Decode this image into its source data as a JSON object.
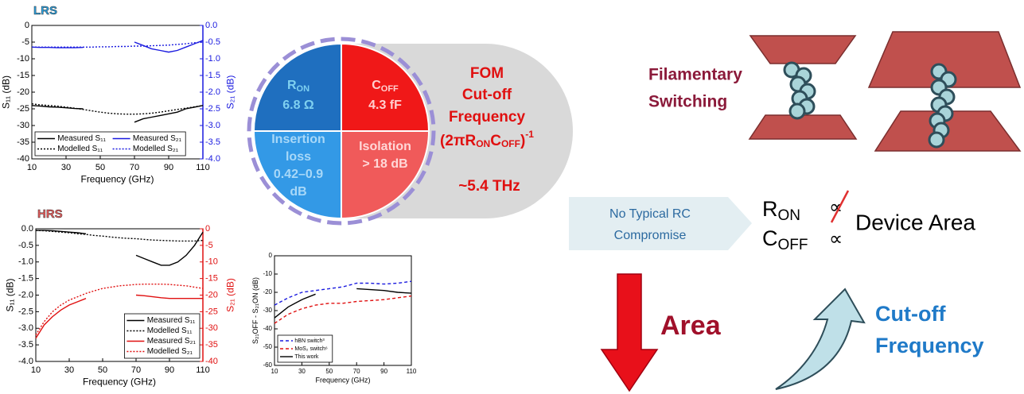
{
  "chart_data": [
    {
      "type": "line",
      "title": "LRS",
      "title_color": "#29a0e0",
      "x_label": "Frequency (GHz)",
      "y_label": "S₁₁ (dB)",
      "y2_label": "S₂₁ (dB)",
      "y2_color": "#1a1adf",
      "x": [
        10,
        15,
        20,
        25,
        30,
        35,
        40,
        45,
        50,
        55,
        60,
        65,
        70,
        75,
        80,
        85,
        90,
        95,
        100,
        105,
        110
      ],
      "xlim": [
        10,
        110
      ],
      "xticks": [
        10,
        30,
        50,
        70,
        90,
        110
      ],
      "ylim": [
        -40,
        0
      ],
      "yticks": [
        0,
        -5,
        -10,
        -15,
        -20,
        -25,
        -30,
        -35,
        -40
      ],
      "y2lim": [
        -4,
        0
      ],
      "y2ticks": [
        {
          "value": 0,
          "label": "0.0"
        },
        -0.5,
        {
          "value": -1,
          "label": "-1.0"
        },
        -1.5,
        {
          "value": -2,
          "label": "-2.0"
        },
        -2.5,
        {
          "value": -3,
          "label": "-3.0"
        },
        -3.5,
        {
          "value": -4,
          "label": "-4.0"
        }
      ],
      "legend": "lower left",
      "legend_columns": 2,
      "series": [
        {
          "name": "Measured S₁₁",
          "color": "#000000",
          "linestyle": "solid",
          "values": [
            -24,
            -24.2,
            -24.4,
            -24.5,
            -24.7,
            -24.9,
            -25,
            null,
            null,
            null,
            null,
            null,
            -29,
            -28,
            -27.5,
            -27,
            -26.5,
            -26,
            -25,
            -24.5,
            -24
          ]
        },
        {
          "name": "Measured S₂₁",
          "color": "#1a1adf",
          "linestyle": "solid",
          "axis": "y2",
          "values": [
            -0.65,
            -0.66,
            -0.66,
            -0.67,
            -0.67,
            -0.67,
            -0.66,
            null,
            null,
            null,
            null,
            null,
            -0.5,
            -0.6,
            -0.7,
            -0.75,
            -0.8,
            -0.75,
            -0.65,
            -0.55,
            -0.45
          ]
        },
        {
          "name": "Modelled S₁₁",
          "color": "#000000",
          "linestyle": "dotted",
          "values": [
            -23.5,
            -23.8,
            -24,
            -24.2,
            -24.5,
            -24.8,
            -25.2,
            -25.6,
            -26,
            -26.3,
            -26.5,
            -26.6,
            -26.6,
            -26.5,
            -26.3,
            -26,
            -25.6,
            -25.2,
            -24.8,
            -24.4,
            -24
          ]
        },
        {
          "name": "Modelled S₂₁",
          "color": "#1a1adf",
          "linestyle": "dotted",
          "axis": "y2",
          "values": [
            -0.65,
            -0.65,
            -0.65,
            -0.65,
            -0.65,
            -0.65,
            -0.65,
            -0.65,
            -0.64,
            -0.64,
            -0.63,
            -0.63,
            -0.62,
            -0.62,
            -0.61,
            -0.6,
            -0.59,
            -0.57,
            -0.55,
            -0.52,
            -0.5
          ]
        }
      ]
    },
    {
      "type": "line",
      "title": "HRS",
      "title_color": "#e85a5a",
      "x_label": "Frequency (GHz)",
      "y_label": "S₁₁ (dB)",
      "y2_label": "S₂₁ (dB)",
      "y2_color": "#e01010",
      "x": [
        10,
        15,
        20,
        25,
        30,
        35,
        40,
        45,
        50,
        55,
        60,
        65,
        70,
        75,
        80,
        85,
        90,
        95,
        100,
        105,
        110
      ],
      "xlim": [
        10,
        110
      ],
      "xticks": [
        10,
        30,
        50,
        70,
        90,
        110
      ],
      "ylim": [
        -4,
        0
      ],
      "yticks": [
        {
          "value": 0,
          "label": "0.0"
        },
        -0.5,
        {
          "value": -1,
          "label": "-1.0"
        },
        -1.5,
        {
          "value": -2,
          "label": "-2.0"
        },
        -2.5,
        {
          "value": -3,
          "label": "-3.0"
        },
        -3.5,
        {
          "value": -4,
          "label": "-4.0"
        }
      ],
      "y2lim": [
        -40,
        0
      ],
      "y2ticks": [
        0,
        -5,
        -10,
        -15,
        -20,
        -25,
        -30,
        -35,
        -40
      ],
      "legend": "lower right",
      "legend_columns": 1,
      "series": [
        {
          "name": "Measured S₁₁",
          "color": "#000000",
          "linestyle": "solid",
          "values": [
            -0.05,
            -0.05,
            -0.06,
            -0.08,
            -0.1,
            -0.12,
            -0.15,
            null,
            null,
            null,
            null,
            null,
            -0.8,
            -0.9,
            -1.0,
            -1.1,
            -1.1,
            -1.0,
            -0.8,
            -0.5,
            -0.1
          ]
        },
        {
          "name": "Modelled S₁₁",
          "color": "#000000",
          "linestyle": "dotted",
          "values": [
            -0.05,
            -0.06,
            -0.08,
            -0.1,
            -0.12,
            -0.15,
            -0.17,
            -0.2,
            -0.22,
            -0.25,
            -0.27,
            -0.29,
            -0.3,
            -0.32,
            -0.34,
            -0.35,
            -0.36,
            -0.37,
            -0.37,
            -0.37,
            -0.35
          ]
        },
        {
          "name": "Measured S₂₁",
          "color": "#e01010",
          "linestyle": "solid",
          "axis": "y2",
          "values": [
            -33,
            -29,
            -26.5,
            -24.5,
            -23,
            -22,
            -21,
            null,
            null,
            null,
            null,
            null,
            -20,
            -20.2,
            -20.5,
            -20.8,
            -21,
            -21,
            -21,
            -21,
            -21
          ]
        },
        {
          "name": "Modelled S₂₁",
          "color": "#e01010",
          "linestyle": "dotted",
          "axis": "y2",
          "values": [
            -32,
            -28,
            -25,
            -23,
            -21.5,
            -20.5,
            -19.5,
            -18.7,
            -18,
            -17.6,
            -17.2,
            -17,
            -16.8,
            -16.7,
            -16.7,
            -16.7,
            -16.8,
            -17,
            -17.2,
            -17.6,
            -18
          ]
        }
      ]
    },
    {
      "type": "line",
      "x_label": "Frequency (GHz)",
      "y_label": "S₂₁OFF - S₂₁ON (dB)",
      "x": [
        10,
        20,
        30,
        40,
        50,
        60,
        70,
        80,
        90,
        100,
        110
      ],
      "xlim": [
        10,
        110
      ],
      "xticks": [
        10,
        30,
        50,
        70,
        90,
        110
      ],
      "ylim": [
        -60,
        0
      ],
      "yticks": [
        0,
        -10,
        -20,
        -30,
        -40,
        -50,
        -60
      ],
      "legend": "lower left",
      "legend_columns": 1,
      "series": [
        {
          "name": "hBN switch³",
          "color": "#1a1adf",
          "linestyle": "dashed",
          "values": [
            -27,
            -23,
            -20,
            -19,
            -18,
            -17,
            -15,
            -15,
            -15.5,
            -15,
            -14
          ]
        },
        {
          "name": "MoS₂ switch⁶",
          "color": "#e01010",
          "linestyle": "dashed",
          "values": [
            -37,
            -32,
            -29,
            -27,
            -26,
            -26,
            -25,
            -24.5,
            -24,
            -23,
            -22
          ]
        },
        {
          "name": "This work",
          "color": "#000000",
          "linestyle": "solid",
          "values": [
            -34,
            -28,
            -24,
            -21,
            null,
            null,
            -18,
            -18.5,
            -19,
            -20,
            -20.5
          ]
        }
      ]
    }
  ],
  "diagram": {
    "fom_circle": {
      "r_on": [
        "R",
        "ON"
      ],
      "r_on_value": "6.8 Ω",
      "c_off": [
        "C",
        "OFF"
      ],
      "c_off_value": "4.3 fF",
      "insertion_loss": [
        "Insertion",
        "loss",
        "0.42–0.9",
        "dB"
      ],
      "isolation": [
        "Isolation",
        "> 18 dB"
      ]
    },
    "fom": {
      "title": "FOM",
      "lines": [
        "Cut-off",
        "Frequency"
      ],
      "formula": [
        "(2πR",
        "ON",
        "C",
        "OFF",
        ")",
        "-1"
      ],
      "value": "~5.4 THz"
    },
    "filamentary": [
      "Filamentary",
      "Switching"
    ],
    "no_compromise": [
      "No Typical RC",
      "Compromise"
    ],
    "relation": {
      "r_on": [
        "R",
        "ON"
      ],
      "c_off": [
        "C",
        "OFF"
      ],
      "proportional": [
        "∝",
        "∝"
      ],
      "device_area": "Device Area"
    },
    "area": "Area",
    "cut_off_frequency": [
      "Cut-off",
      "Frequency"
    ]
  }
}
